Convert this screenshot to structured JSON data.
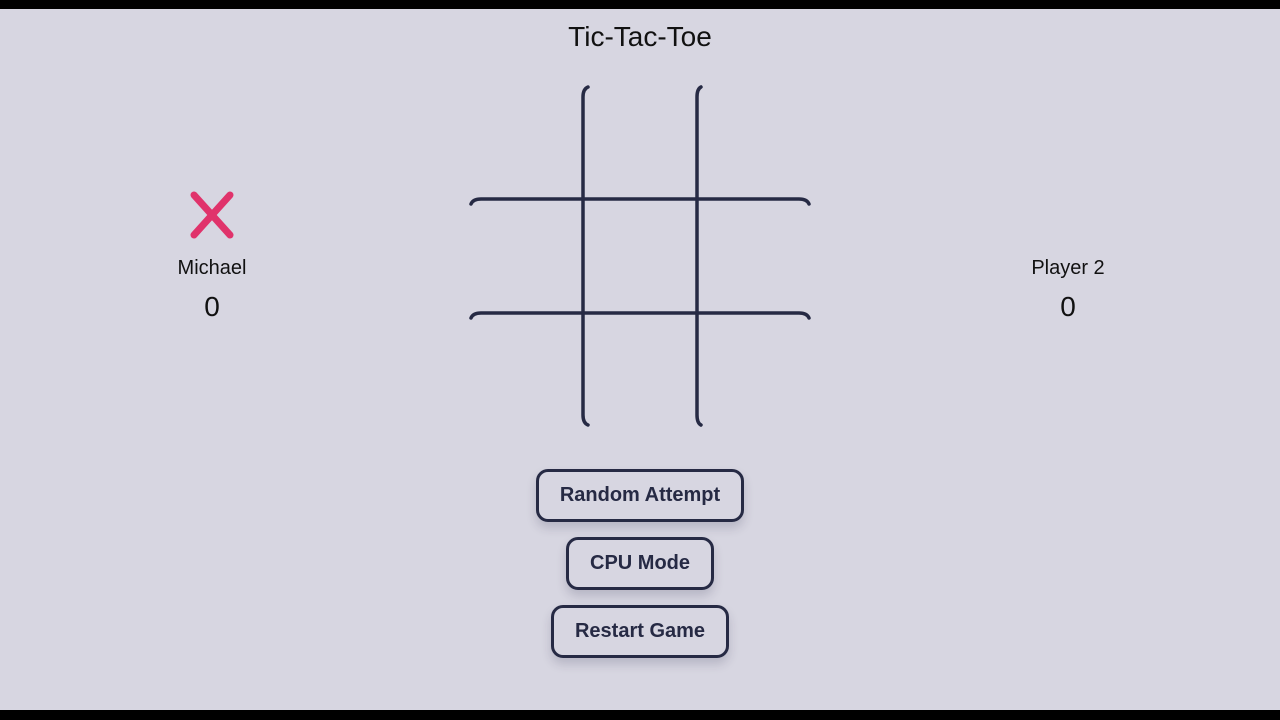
{
  "title": "Tic-Tac-Toe",
  "players": [
    {
      "name": "Michael",
      "score": "0",
      "marker": "x-icon",
      "marker_color": "#e0336b"
    },
    {
      "name": "Player 2",
      "score": "0",
      "marker": ""
    }
  ],
  "board": {
    "cells": [
      "",
      "",
      "",
      "",
      "",
      "",
      "",
      "",
      ""
    ],
    "line_color": "#262a44"
  },
  "buttons": {
    "random_attempt": "Random Attempt",
    "cpu_mode": "CPU Mode",
    "restart_game": "Restart Game"
  },
  "colors": {
    "background": "#d7d6e1",
    "button_border": "#262a44",
    "x_color": "#e0336b"
  }
}
